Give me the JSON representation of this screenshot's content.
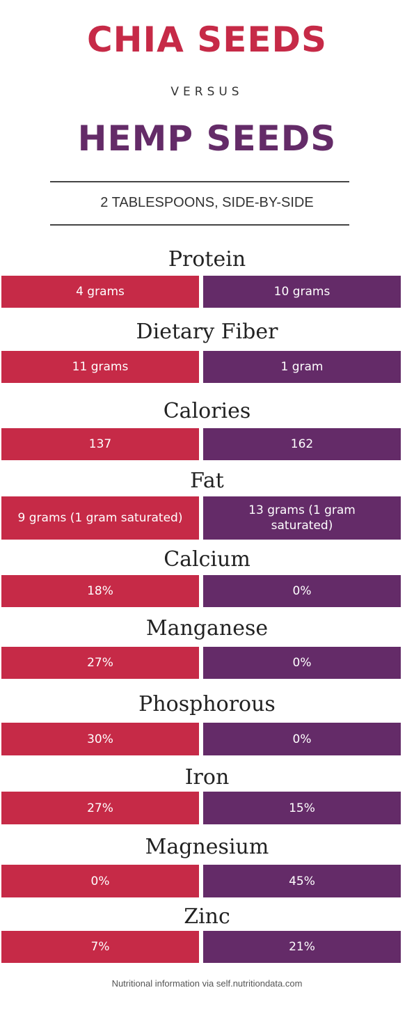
{
  "header": {
    "title1": "CHIA SEEDS",
    "versus": "VERSUS",
    "title2": "HEMP SEEDS",
    "subtitle": "2 TABLESPOONS, SIDE-BY-SIDE"
  },
  "rows": [
    {
      "label": "Protein",
      "chia": "4 grams",
      "hemp": "10 grams"
    },
    {
      "label": "Dietary Fiber",
      "chia": "11 grams",
      "hemp": "1 gram"
    },
    {
      "label": "Calories",
      "chia": "137",
      "hemp": "162"
    },
    {
      "label": "Fat",
      "chia": "9 grams (1 gram saturated)",
      "hemp": "13 grams (1 gram saturated)"
    },
    {
      "label": "Calcium",
      "chia": "18%",
      "hemp": "0%"
    },
    {
      "label": "Manganese",
      "chia": "27%",
      "hemp": "0%"
    },
    {
      "label": "Phosphorous",
      "chia": "30%",
      "hemp": "0%"
    },
    {
      "label": "Iron",
      "chia": "27%",
      "hemp": "15%"
    },
    {
      "label": "Magnesium",
      "chia": "0%",
      "hemp": "45%"
    },
    {
      "label": "Zinc",
      "chia": "7%",
      "hemp": "21%"
    }
  ],
  "footer": "Nutritional information via self.nutritiondata.com"
}
